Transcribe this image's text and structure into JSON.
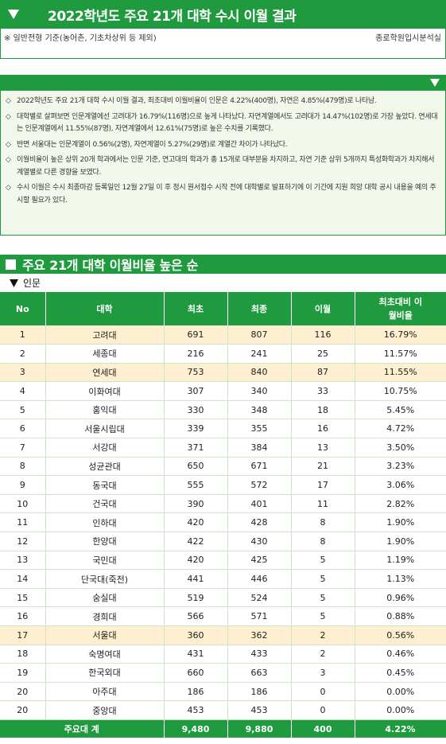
{
  "header": {
    "title": "2022학년도 주요 21개 대학 수시 이월 결과",
    "note": "※ 일반전형 기준(농어촌, 기초차상위 등 제외)",
    "source": "종로학원입시분석실"
  },
  "summary": [
    "2022학년도 주요 21개 대학 수시 이월 결과, 최초대비 이월비율이 인문은 4.22%(400명), 자연은 4.85%(479명)로 나타남.",
    "대학별로 살펴보면 인문계열에선 고려대가 16.79%(116명)으로 높게 나타났다. 자연계열에서도 고려대가 14.47%(102명)로 가장 높았다. 연세대는 인문계열에서 11.55%(87명), 자연계열에서 12.61%(75명)로 높은 수치를 기록했다.",
    "반면 서울대는 인문계열이 0.56%(2명), 자연계열이 5.27%(29명)로 계열간 차이가 나타났다.",
    "이월비율이 높은 상위 20개 학과에서는 인문 기준, 연고대의 학과가 총 15개로 대부분을 차지하고, 자연 기준 상위 5개까지 특성화학과가 차지해서 계열별로 다른 경향을 보였다.",
    "수시 이월은 수시 최종마감 등록일인 12월 27일 이 후 정시 원서접수 시작 전에 대학별로 발표하기에 이 기간에 지원 희망 대학 공시 내용을 예의 주시할 필요가 있다."
  ],
  "section": {
    "title": "주요 21개 대학 이월비율 높은 순",
    "subtitle": "인문"
  },
  "table": {
    "headers": [
      "No",
      "대학",
      "최초",
      "최종",
      "이월",
      "최초대비 이월비율"
    ],
    "rows": [
      {
        "no": "1",
        "univ": "고려대",
        "init": "691",
        "final": "807",
        "carry": "116",
        "ratio": "16.79%",
        "hl": true
      },
      {
        "no": "2",
        "univ": "세종대",
        "init": "216",
        "final": "241",
        "carry": "25",
        "ratio": "11.57%",
        "hl": false
      },
      {
        "no": "3",
        "univ": "연세대",
        "init": "753",
        "final": "840",
        "carry": "87",
        "ratio": "11.55%",
        "hl": true
      },
      {
        "no": "4",
        "univ": "이화여대",
        "init": "307",
        "final": "340",
        "carry": "33",
        "ratio": "10.75%",
        "hl": false
      },
      {
        "no": "5",
        "univ": "홍익대",
        "init": "330",
        "final": "348",
        "carry": "18",
        "ratio": "5.45%",
        "hl": false
      },
      {
        "no": "6",
        "univ": "서울시립대",
        "init": "339",
        "final": "355",
        "carry": "16",
        "ratio": "4.72%",
        "hl": false
      },
      {
        "no": "7",
        "univ": "서강대",
        "init": "371",
        "final": "384",
        "carry": "13",
        "ratio": "3.50%",
        "hl": false
      },
      {
        "no": "8",
        "univ": "성균관대",
        "init": "650",
        "final": "671",
        "carry": "21",
        "ratio": "3.23%",
        "hl": false
      },
      {
        "no": "9",
        "univ": "동국대",
        "init": "555",
        "final": "572",
        "carry": "17",
        "ratio": "3.06%",
        "hl": false
      },
      {
        "no": "10",
        "univ": "건국대",
        "init": "390",
        "final": "401",
        "carry": "11",
        "ratio": "2.82%",
        "hl": false
      },
      {
        "no": "11",
        "univ": "인하대",
        "init": "420",
        "final": "428",
        "carry": "8",
        "ratio": "1.90%",
        "hl": false
      },
      {
        "no": "12",
        "univ": "한양대",
        "init": "422",
        "final": "430",
        "carry": "8",
        "ratio": "1.90%",
        "hl": false
      },
      {
        "no": "13",
        "univ": "국민대",
        "init": "420",
        "final": "425",
        "carry": "5",
        "ratio": "1.19%",
        "hl": false
      },
      {
        "no": "14",
        "univ": "단국대(죽전)",
        "init": "441",
        "final": "446",
        "carry": "5",
        "ratio": "1.13%",
        "hl": false
      },
      {
        "no": "15",
        "univ": "숭실대",
        "init": "519",
        "final": "524",
        "carry": "5",
        "ratio": "0.96%",
        "hl": false
      },
      {
        "no": "16",
        "univ": "경희대",
        "init": "566",
        "final": "571",
        "carry": "5",
        "ratio": "0.88%",
        "hl": false
      },
      {
        "no": "17",
        "univ": "서울대",
        "init": "360",
        "final": "362",
        "carry": "2",
        "ratio": "0.56%",
        "hl": true
      },
      {
        "no": "18",
        "univ": "숙명여대",
        "init": "431",
        "final": "433",
        "carry": "2",
        "ratio": "0.46%",
        "hl": false
      },
      {
        "no": "19",
        "univ": "한국외대",
        "init": "660",
        "final": "663",
        "carry": "3",
        "ratio": "0.45%",
        "hl": false
      },
      {
        "no": "20",
        "univ": "아주대",
        "init": "186",
        "final": "186",
        "carry": "0",
        "ratio": "0.00%",
        "hl": false
      },
      {
        "no": "20",
        "univ": "중앙대",
        "init": "453",
        "final": "453",
        "carry": "0",
        "ratio": "0.00%",
        "hl": false
      }
    ],
    "total": {
      "label": "주요대 계",
      "init": "9,480",
      "final": "9,880",
      "carry": "400",
      "ratio": "4.22%"
    }
  },
  "colors": {
    "accent": "#1f9a3e",
    "highlight": "#fdefcf",
    "summary_bg": "#f3f8ec"
  }
}
